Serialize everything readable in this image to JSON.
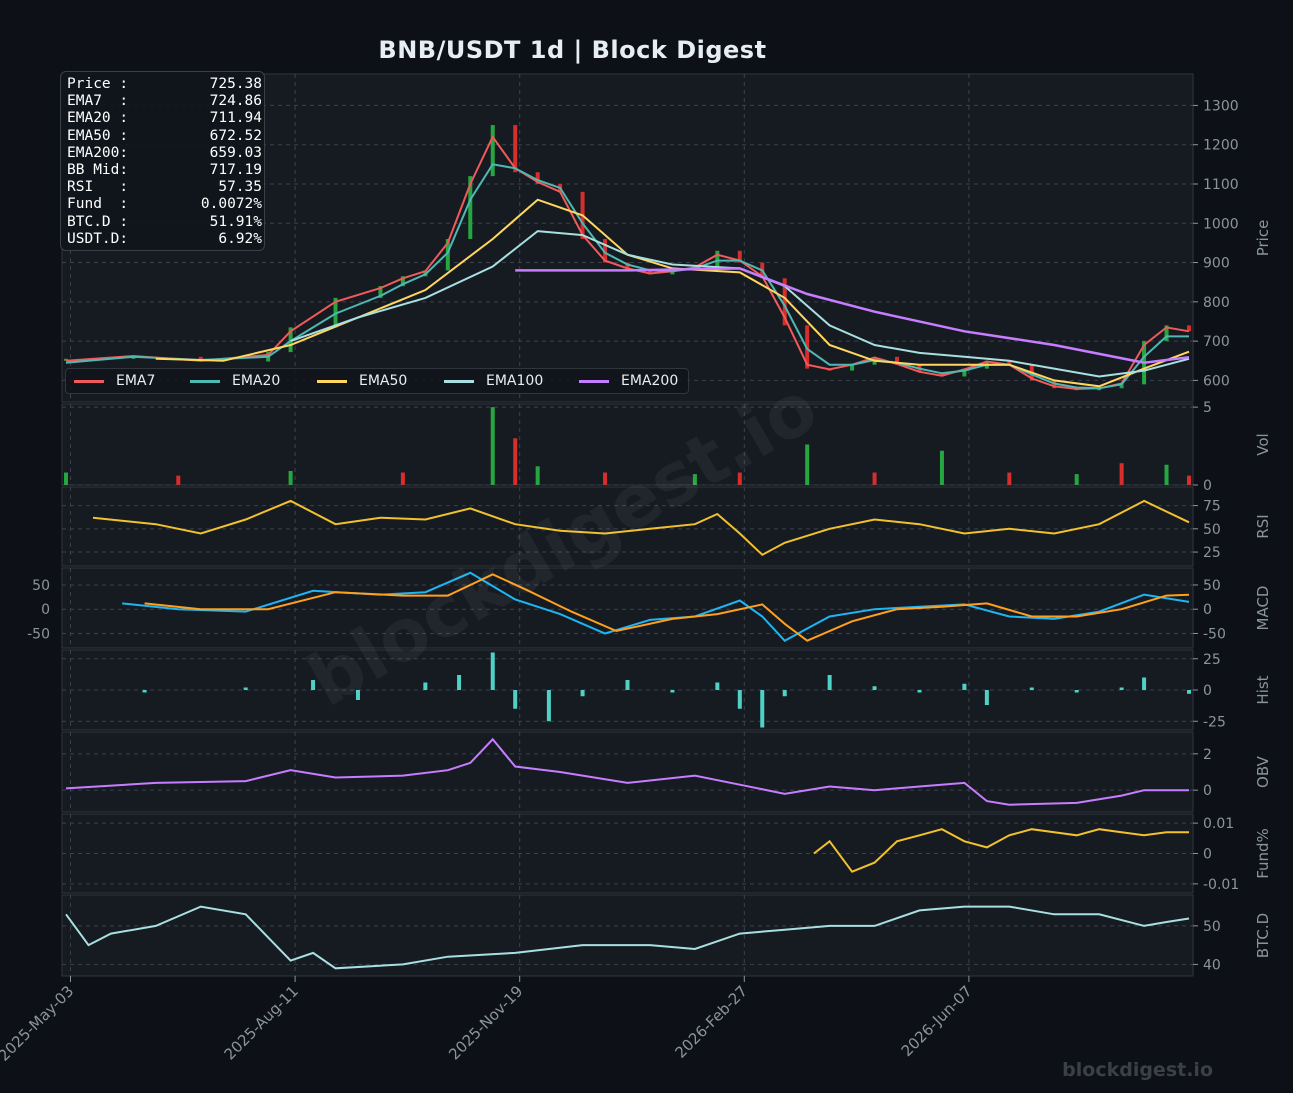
{
  "title": "BNB/USDT  1d  |  Block Digest",
  "watermark": "blockdigest.io",
  "footer": "blockdigest.io",
  "info": [
    {
      "key": "Price :",
      "value": "725.38"
    },
    {
      "key": "EMA7  :",
      "value": "724.86"
    },
    {
      "key": "EMA20 :",
      "value": "711.94"
    },
    {
      "key": "EMA50 :",
      "value": "672.52"
    },
    {
      "key": "EMA200:",
      "value": "659.03"
    },
    {
      "key": "BB Mid:",
      "value": "717.19"
    },
    {
      "key": "RSI   :",
      "value": "57.35"
    },
    {
      "key": "Fund  :",
      "value": "0.0072%"
    },
    {
      "key": "BTC.D :",
      "value": "51.91%"
    },
    {
      "key": "USDT.D:",
      "value": "6.92%"
    }
  ],
  "legend": [
    {
      "name": "EMA7",
      "color": "#f05a5a"
    },
    {
      "name": "EMA20",
      "color": "#4fb8b2"
    },
    {
      "name": "EMA50",
      "color": "#ffd75e"
    },
    {
      "name": "EMA100",
      "color": "#a8dfe0"
    },
    {
      "name": "EMA200",
      "color": "#c77dff"
    }
  ],
  "colors": {
    "background": "#0d1117",
    "panel": "#161b22",
    "grid": "#3b424c",
    "up": "#26a641",
    "down": "#d62d2d",
    "rsi": "#f2c12e",
    "macd": "#1fb4f2",
    "signal": "#ff9f1c",
    "hist": "#4fd1c5",
    "obv": "#c77dff",
    "funding": "#f2c12e",
    "btcd": "#a8dfe0",
    "text": "#8b949e"
  },
  "chart_data": {
    "type": "line",
    "x_ticks": [
      "2025-May-03",
      "2025-Aug-11",
      "2025-Nov-19",
      "2026-Feb-27",
      "2026-Jun-07"
    ],
    "panels": [
      {
        "id": "price",
        "ylabel": "Price",
        "yticks": [
          600,
          700,
          800,
          900,
          1000,
          1100,
          1200,
          1300
        ],
        "ylim": [
          545,
          1380
        ],
        "series": [
          {
            "name": "Close",
            "x": [
              0,
              30,
              60,
              90,
              100,
              120,
              140,
              150,
              160,
              170,
              180,
              190,
              200,
              210,
              220,
              230,
              240,
              250,
              260,
              270,
              280,
              290,
              300,
              310,
              320,
              330,
              340,
              350,
              360,
              370,
              380,
              390,
              400,
              410,
              420,
              430,
              440,
              450,
              460,
              470,
              480,
              490,
              500
            ],
            "values": [
              655,
              660,
              648,
              672,
              735,
              810,
              840,
              865,
              880,
              960,
              1120,
              1250,
              1130,
              1100,
              1080,
              960,
              900,
              880,
              870,
              880,
              890,
              930,
              900,
              860,
              740,
              630,
              625,
              640,
              660,
              640,
              620,
              610,
              630,
              650,
              640,
              600,
              580,
              575,
              580,
              590,
              700,
              740,
              725
            ]
          },
          {
            "name": "EMA7",
            "x": [
              0,
              30,
              60,
              90,
              100,
              120,
              140,
              150,
              160,
              170,
              180,
              190,
              200,
              210,
              220,
              230,
              240,
              250,
              260,
              270,
              280,
              290,
              300,
              310,
              320,
              330,
              340,
              350,
              360,
              370,
              380,
              390,
              400,
              410,
              420,
              430,
              440,
              450,
              460,
              470,
              480,
              490,
              500
            ],
            "values": [
              650,
              662,
              650,
              665,
              725,
              800,
              835,
              860,
              878,
              950,
              1100,
              1220,
              1140,
              1105,
              1080,
              970,
              905,
              885,
              872,
              878,
              888,
              920,
              905,
              865,
              760,
              640,
              628,
              640,
              658,
              642,
              622,
              612,
              628,
              648,
              640,
              605,
              585,
              578,
              580,
              592,
              690,
              735,
              725
            ]
          },
          {
            "name": "EMA20",
            "x": [
              0,
              30,
              60,
              90,
              100,
              120,
              140,
              150,
              160,
              170,
              180,
              190,
              200,
              210,
              220,
              230,
              240,
              250,
              260,
              270,
              280,
              290,
              300,
              310,
              320,
              330,
              340,
              350,
              360,
              370,
              380,
              390,
              400,
              410,
              420,
              430,
              440,
              450,
              460,
              470,
              480,
              490,
              500
            ],
            "values": [
              645,
              660,
              652,
              660,
              700,
              770,
              815,
              845,
              870,
              925,
              1060,
              1150,
              1140,
              1110,
              1090,
              1000,
              925,
              895,
              880,
              878,
              885,
              905,
              905,
              880,
              790,
              680,
              640,
              640,
              652,
              645,
              630,
              618,
              625,
              640,
              640,
              615,
              592,
              582,
              580,
              590,
              660,
              712,
              712
            ]
          },
          {
            "name": "EMA50",
            "x": [
              40,
              70,
              100,
              130,
              160,
              190,
              210,
              230,
              250,
              270,
              300,
              320,
              340,
              360,
              380,
              400,
              420,
              440,
              460,
              480,
              500
            ],
            "values": [
              655,
              650,
              690,
              760,
              830,
              960,
              1060,
              1020,
              920,
              885,
              875,
              810,
              690,
              650,
              640,
              640,
              640,
              600,
              585,
              630,
              673
            ]
          },
          {
            "name": "EMA100",
            "x": [
              100,
              130,
              160,
              190,
              210,
              230,
              250,
              270,
              300,
              320,
              340,
              360,
              380,
              400,
              420,
              440,
              460,
              480,
              500
            ],
            "values": [
              700,
              760,
              810,
              890,
              980,
              970,
              920,
              895,
              885,
              840,
              740,
              690,
              670,
              660,
              650,
              630,
              610,
              625,
              655
            ]
          },
          {
            "name": "EMA200",
            "x": [
              200,
              250,
              300,
              330,
              360,
              400,
              440,
              480,
              500
            ],
            "values": [
              880,
              880,
              885,
              820,
              775,
              725,
              690,
              645,
              659
            ]
          }
        ]
      },
      {
        "id": "volume",
        "ylabel": "Vol",
        "yticks": [
          0,
          5
        ],
        "scale_label": "1e6",
        "series": [
          {
            "name": "Volume",
            "x": [
              0,
              50,
              100,
              150,
              190,
              200,
              210,
              240,
              280,
              300,
              330,
              360,
              390,
              420,
              450,
              470,
              490,
              500
            ],
            "values": [
              0.8,
              0.6,
              0.9,
              0.8,
              5.0,
              3.0,
              1.2,
              0.8,
              0.7,
              0.8,
              2.6,
              0.8,
              2.2,
              0.8,
              0.7,
              1.4,
              1.3,
              0.6
            ]
          }
        ]
      },
      {
        "id": "rsi",
        "ylabel": "RSI",
        "yticks": [
          25,
          50,
          75
        ],
        "series": [
          {
            "name": "RSI",
            "x": [
              12,
              40,
              60,
              80,
              100,
              120,
              140,
              160,
              180,
              200,
              220,
              240,
              260,
              280,
              290,
              300,
              310,
              320,
              340,
              360,
              380,
              400,
              420,
              440,
              460,
              480,
              500
            ],
            "values": [
              62,
              55,
              45,
              60,
              80,
              55,
              62,
              60,
              72,
              55,
              48,
              45,
              50,
              55,
              66,
              45,
              22,
              35,
              50,
              60,
              55,
              45,
              50,
              45,
              55,
              80,
              57
            ]
          }
        ]
      },
      {
        "id": "macd",
        "ylabel": "MACD",
        "yticks": [
          -50,
          0,
          50
        ],
        "series": [
          {
            "name": "MACD",
            "x": [
              25,
              50,
              80,
              110,
              140,
              160,
              180,
              200,
              220,
              240,
              260,
              280,
              300,
              310,
              320,
              340,
              360,
              380,
              400,
              420,
              440,
              460,
              480,
              500
            ],
            "values": [
              12,
              0,
              -5,
              38,
              30,
              35,
              75,
              20,
              -10,
              -50,
              -22,
              -15,
              18,
              -15,
              -65,
              -15,
              0,
              5,
              10,
              -15,
              -20,
              -5,
              30,
              15
            ]
          },
          {
            "name": "Signal",
            "x": [
              35,
              60,
              90,
              120,
              150,
              170,
              190,
              205,
              225,
              245,
              270,
              290,
              310,
              320,
              330,
              350,
              370,
              390,
              410,
              430,
              450,
              470,
              490,
              500
            ],
            "values": [
              12,
              0,
              0,
              35,
              28,
              28,
              72,
              40,
              -5,
              -45,
              -20,
              -10,
              10,
              -30,
              -65,
              -25,
              0,
              5,
              12,
              -15,
              -15,
              0,
              28,
              30
            ]
          }
        ]
      },
      {
        "id": "hist",
        "ylabel": "Hist",
        "yticks": [
          -25,
          0,
          25
        ],
        "scale_label": "1e7",
        "series": [
          {
            "name": "Histogram",
            "x": [
              35,
              80,
              110,
              130,
              160,
              175,
              190,
              200,
              215,
              230,
              250,
              270,
              290,
              300,
              310,
              320,
              340,
              360,
              380,
              400,
              410,
              430,
              450,
              470,
              480,
              500
            ],
            "values": [
              -2,
              2,
              8,
              -8,
              6,
              12,
              30,
              -15,
              -25,
              -5,
              8,
              -2,
              6,
              -15,
              -30,
              -5,
              12,
              3,
              -2,
              5,
              -12,
              2,
              -2,
              2,
              10,
              -3
            ]
          }
        ]
      },
      {
        "id": "obv",
        "ylabel": "OBV",
        "yticks": [
          0,
          2
        ],
        "series": [
          {
            "name": "OBV",
            "x": [
              0,
              40,
              80,
              100,
              120,
              150,
              170,
              180,
              190,
              200,
              220,
              250,
              280,
              300,
              320,
              340,
              360,
              380,
              400,
              410,
              420,
              450,
              470,
              480,
              500
            ],
            "values": [
              0.1,
              0.4,
              0.5,
              1.1,
              0.7,
              0.8,
              1.1,
              1.5,
              2.8,
              1.3,
              1.0,
              0.4,
              0.8,
              0.3,
              -0.2,
              0.2,
              0.0,
              0.2,
              0.4,
              -0.6,
              -0.8,
              -0.7,
              -0.3,
              0.0,
              0.0
            ]
          }
        ]
      },
      {
        "id": "funding",
        "ylabel": "Fund%",
        "yticks": [
          -0.01,
          0.0,
          0.01
        ],
        "series": [
          {
            "name": "Funding",
            "x": [
              333,
              340,
              350,
              360,
              370,
              380,
              390,
              400,
              410,
              420,
              430,
              440,
              450,
              460,
              470,
              480,
              490,
              500
            ],
            "values": [
              0.0,
              0.004,
              -0.006,
              -0.003,
              0.004,
              0.006,
              0.008,
              0.004,
              0.002,
              0.006,
              0.008,
              0.007,
              0.006,
              0.008,
              0.007,
              0.006,
              0.007,
              0.007
            ]
          }
        ]
      },
      {
        "id": "btcd",
        "ylabel": "BTC.D",
        "yticks": [
          40,
          50
        ],
        "series": [
          {
            "name": "BTC.D",
            "x": [
              0,
              10,
              20,
              40,
              60,
              80,
              90,
              100,
              110,
              120,
              150,
              170,
              200,
              230,
              260,
              280,
              300,
              320,
              340,
              360,
              380,
              400,
              420,
              440,
              460,
              480,
              490,
              500
            ],
            "values": [
              53,
              45,
              48,
              50,
              55,
              53,
              47,
              41,
              43,
              39,
              40,
              42,
              43,
              45,
              45,
              44,
              48,
              49,
              50,
              50,
              54,
              55,
              55,
              53,
              53,
              50,
              51,
              51.9
            ]
          }
        ]
      }
    ]
  }
}
